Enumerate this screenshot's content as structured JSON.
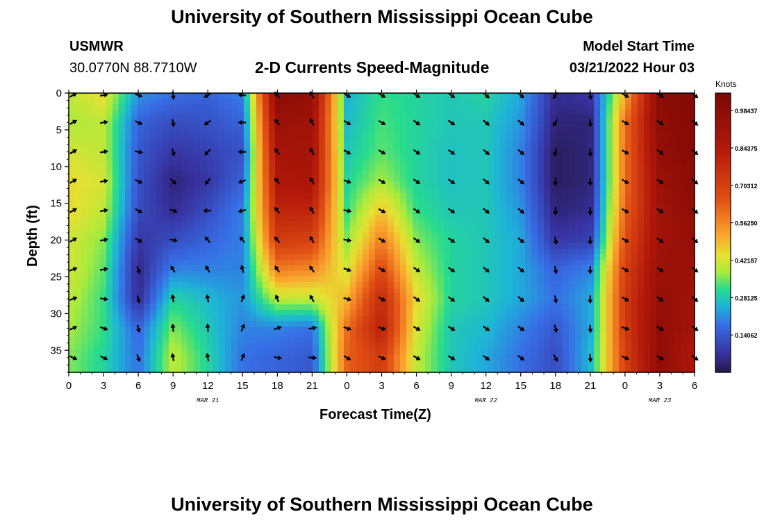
{
  "page": {
    "title_top": "University of Southern Mississippi Ocean Cube",
    "title_bottom": "University of Southern Mississippi Ocean Cube",
    "station": "USMWR",
    "coords": "30.0770N  88.7710W",
    "subtitle": "2-D Currents Speed-Magnitude",
    "model_start_label": "Model Start Time",
    "model_start_value": "03/21/2022 Hour 03"
  },
  "chart_data": {
    "type": "heatmap",
    "title": "2-D Currents Speed-Magnitude",
    "xlabel": "Forecast Time(Z)",
    "ylabel": "Depth (ft)",
    "x_range_hours": [
      0,
      54
    ],
    "y_range_ft": [
      0,
      38
    ],
    "y_inverted": true,
    "x_tick_labels": [
      "0",
      "3",
      "6",
      "9",
      "12",
      "15",
      "18",
      "21",
      "0",
      "3",
      "6",
      "9",
      "12",
      "15",
      "18",
      "21",
      "0",
      "3",
      "6"
    ],
    "y_ticks": [
      0,
      5,
      10,
      15,
      20,
      25,
      30,
      35
    ],
    "date_labels": [
      {
        "hour": 12,
        "text": "MAR 21"
      },
      {
        "hour": 36,
        "text": "MAR 22"
      },
      {
        "hour": 51,
        "text": "MAR 23"
      }
    ],
    "colorbar": {
      "unit": "Knots",
      "min": 0.0,
      "max": 1.05,
      "tick_labels": [
        "0.98437",
        "0.84375",
        "0.70312",
        "0.56250",
        "0.42187",
        "0.28125",
        "0.14062"
      ],
      "tick_values": [
        0.98437,
        0.84375,
        0.70312,
        0.5625,
        0.42187,
        0.28125,
        0.14062
      ]
    },
    "grid_hours": [
      0,
      3,
      6,
      9,
      12,
      15,
      18,
      21,
      24,
      27,
      30,
      33,
      36,
      39,
      42,
      45,
      48,
      51,
      54
    ],
    "grid_depths_ft": [
      0,
      4,
      8,
      12,
      16,
      20,
      24,
      28,
      32,
      36
    ],
    "speed_knots": [
      [
        0.4,
        0.38,
        0.42,
        0.45,
        0.45,
        0.42,
        0.42,
        0.4,
        0.38,
        0.36
      ],
      [
        0.45,
        0.4,
        0.4,
        0.42,
        0.4,
        0.36,
        0.34,
        0.32,
        0.32,
        0.3
      ],
      [
        0.22,
        0.16,
        0.14,
        0.13,
        0.12,
        0.08,
        0.05,
        0.06,
        0.16,
        0.18
      ],
      [
        0.18,
        0.12,
        0.08,
        0.04,
        0.06,
        0.12,
        0.2,
        0.3,
        0.36,
        0.4
      ],
      [
        0.16,
        0.13,
        0.1,
        0.08,
        0.12,
        0.16,
        0.2,
        0.26,
        0.28,
        0.3
      ],
      [
        0.2,
        0.16,
        0.13,
        0.16,
        0.2,
        0.2,
        0.2,
        0.22,
        0.2,
        0.18
      ],
      [
        1.0,
        0.94,
        0.9,
        0.86,
        0.8,
        0.72,
        0.58,
        0.4,
        0.2,
        0.16
      ],
      [
        0.96,
        0.92,
        0.9,
        0.88,
        0.8,
        0.7,
        0.56,
        0.4,
        0.18,
        0.14
      ],
      [
        0.25,
        0.26,
        0.28,
        0.3,
        0.32,
        0.36,
        0.42,
        0.5,
        0.6,
        0.62
      ],
      [
        0.32,
        0.33,
        0.34,
        0.38,
        0.48,
        0.58,
        0.68,
        0.78,
        0.82,
        0.72
      ],
      [
        0.3,
        0.3,
        0.3,
        0.3,
        0.32,
        0.36,
        0.4,
        0.45,
        0.42,
        0.4
      ],
      [
        0.28,
        0.28,
        0.27,
        0.27,
        0.28,
        0.3,
        0.3,
        0.3,
        0.28,
        0.28
      ],
      [
        0.3,
        0.28,
        0.28,
        0.28,
        0.28,
        0.28,
        0.28,
        0.28,
        0.26,
        0.24
      ],
      [
        0.24,
        0.22,
        0.2,
        0.2,
        0.22,
        0.24,
        0.24,
        0.24,
        0.2,
        0.18
      ],
      [
        0.06,
        0.04,
        0.02,
        0.02,
        0.04,
        0.08,
        0.16,
        0.18,
        0.14,
        0.12
      ],
      [
        0.08,
        0.04,
        0.04,
        0.04,
        0.06,
        0.1,
        0.2,
        0.24,
        0.24,
        0.26
      ],
      [
        0.5,
        0.6,
        0.6,
        0.6,
        0.62,
        0.66,
        0.7,
        0.72,
        0.72,
        0.7
      ],
      [
        1.0,
        0.98,
        0.96,
        0.94,
        0.92,
        0.92,
        0.94,
        0.96,
        0.98,
        0.98
      ],
      [
        1.02,
        1.02,
        1.02,
        1.0,
        0.98,
        0.96,
        0.94,
        0.92,
        0.9,
        0.86
      ]
    ],
    "arrow_hours": [
      0,
      3,
      6,
      9,
      12,
      15,
      18,
      21,
      24,
      27,
      30,
      33,
      36,
      39,
      42,
      45,
      48,
      51,
      54
    ],
    "arrow_depths_ft": [
      0,
      4,
      8,
      12,
      16,
      20,
      24,
      28,
      32,
      36
    ],
    "direction_deg": [
      [
        60,
        60,
        60,
        60,
        60,
        60,
        70,
        70,
        65,
        115
      ],
      [
        80,
        80,
        80,
        80,
        80,
        80,
        80,
        100,
        110,
        115
      ],
      [
        110,
        115,
        100,
        115,
        120,
        120,
        160,
        165,
        165,
        160
      ],
      [
        170,
        170,
        165,
        135,
        110,
        100,
        330,
        350,
        355,
        350
      ],
      [
        240,
        235,
        225,
        220,
        270,
        320,
        330,
        350,
        355,
        350
      ],
      [
        275,
        270,
        270,
        250,
        255,
        320,
        345,
        20,
        20,
        20
      ],
      [
        320,
        320,
        320,
        320,
        320,
        320,
        325,
        340,
        70,
        100
      ],
      [
        330,
        330,
        330,
        330,
        330,
        330,
        325,
        330,
        80,
        95
      ],
      [
        120,
        120,
        120,
        110,
        100,
        100,
        110,
        105,
        110,
        120
      ],
      [
        120,
        120,
        120,
        120,
        120,
        120,
        120,
        120,
        110,
        115
      ],
      [
        125,
        125,
        125,
        125,
        125,
        125,
        125,
        125,
        120,
        120
      ],
      [
        125,
        125,
        125,
        125,
        125,
        125,
        125,
        125,
        120,
        120
      ],
      [
        130,
        130,
        130,
        130,
        130,
        130,
        130,
        130,
        125,
        125
      ],
      [
        130,
        130,
        130,
        130,
        130,
        130,
        130,
        130,
        125,
        125
      ],
      [
        215,
        210,
        195,
        185,
        180,
        170,
        170,
        170,
        165,
        150
      ],
      [
        170,
        175,
        175,
        180,
        180,
        180,
        180,
        180,
        175,
        175
      ],
      [
        120,
        120,
        120,
        120,
        120,
        120,
        120,
        120,
        110,
        115
      ],
      [
        120,
        125,
        125,
        125,
        125,
        125,
        125,
        125,
        120,
        120
      ],
      [
        130,
        130,
        130,
        130,
        130,
        130,
        130,
        130,
        125,
        125
      ]
    ]
  }
}
